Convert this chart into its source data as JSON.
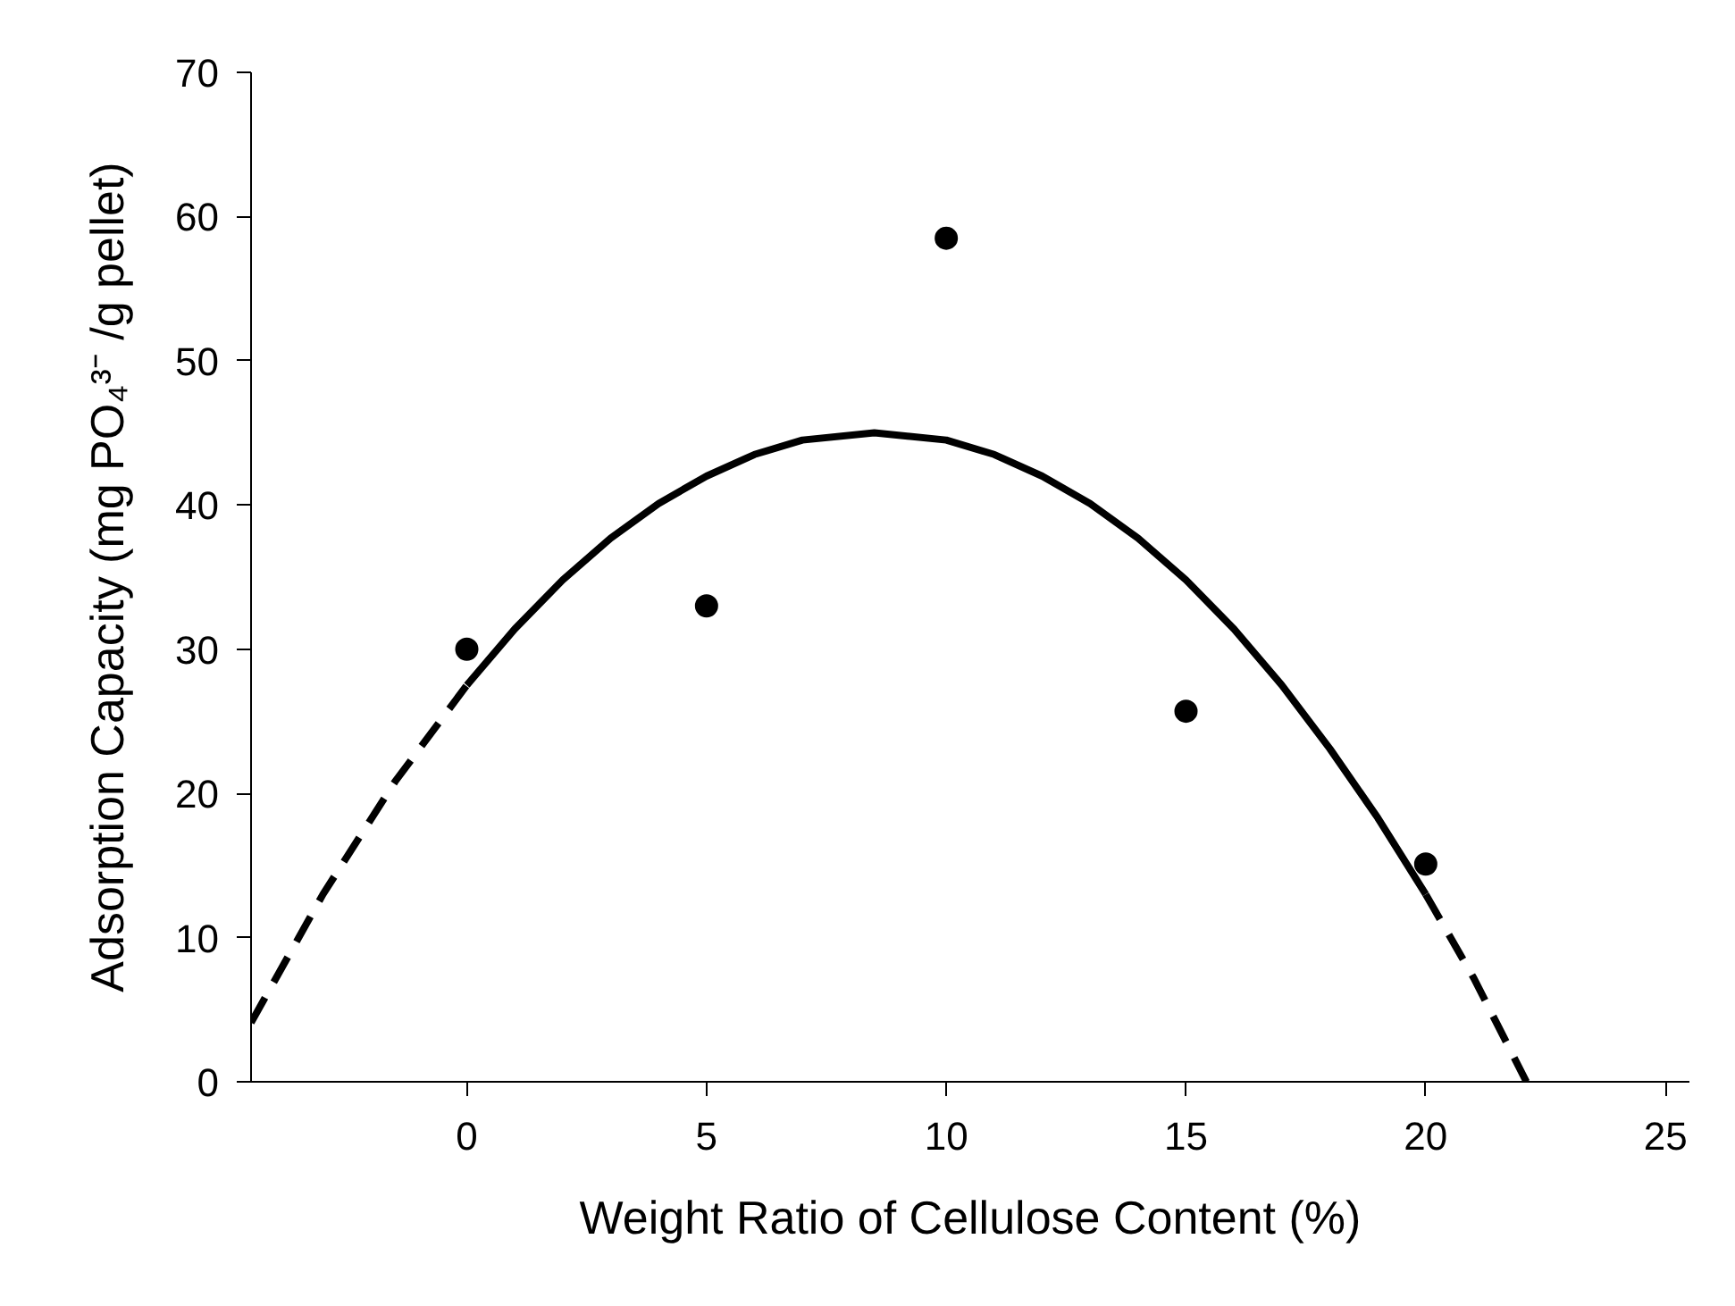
{
  "chart_data": {
    "type": "scatter",
    "xlabel": "Weight Ratio of Cellulose Content (%)",
    "ylabel": "Adsorption Capacity (mg PO₄³⁻ /g pellet)",
    "xlim": [
      -4.5,
      25.5
    ],
    "ylim": [
      0,
      70
    ],
    "xticks": [
      0,
      5,
      10,
      15,
      20,
      25
    ],
    "yticks": [
      0,
      10,
      20,
      30,
      40,
      50,
      60,
      70
    ],
    "grid": false,
    "marker": "circle",
    "series": [
      {
        "color": "#000000",
        "x": [
          0,
          5,
          10,
          15,
          20
        ],
        "values": [
          30,
          33,
          58.5,
          25.7,
          15.1
        ]
      },
      {
        "type": "line",
        "color": "#000000",
        "line_style": "solid",
        "marker": "none",
        "x": [
          0,
          1,
          2,
          3,
          4,
          5,
          6,
          7,
          8.5,
          10,
          11,
          12,
          13,
          14,
          15,
          16,
          17,
          18,
          19,
          20
        ],
        "values": [
          27.5,
          31.4,
          34.8,
          37.7,
          40.1,
          42.0,
          43.5,
          44.5,
          45,
          44.5,
          43.5,
          42.0,
          40.1,
          37.7,
          34.8,
          31.4,
          27.5,
          23.1,
          18.3,
          13.0
        ]
      },
      {
        "type": "line",
        "color": "#000000",
        "line_style": "dashed",
        "marker": "none",
        "x": [
          -4.5,
          -3,
          -1.5,
          0,
          10,
          20,
          21,
          22.1
        ],
        "values": [
          4.1,
          13.0,
          20.8,
          27.5,
          null,
          13.0,
          7.2,
          0
        ]
      }
    ]
  }
}
